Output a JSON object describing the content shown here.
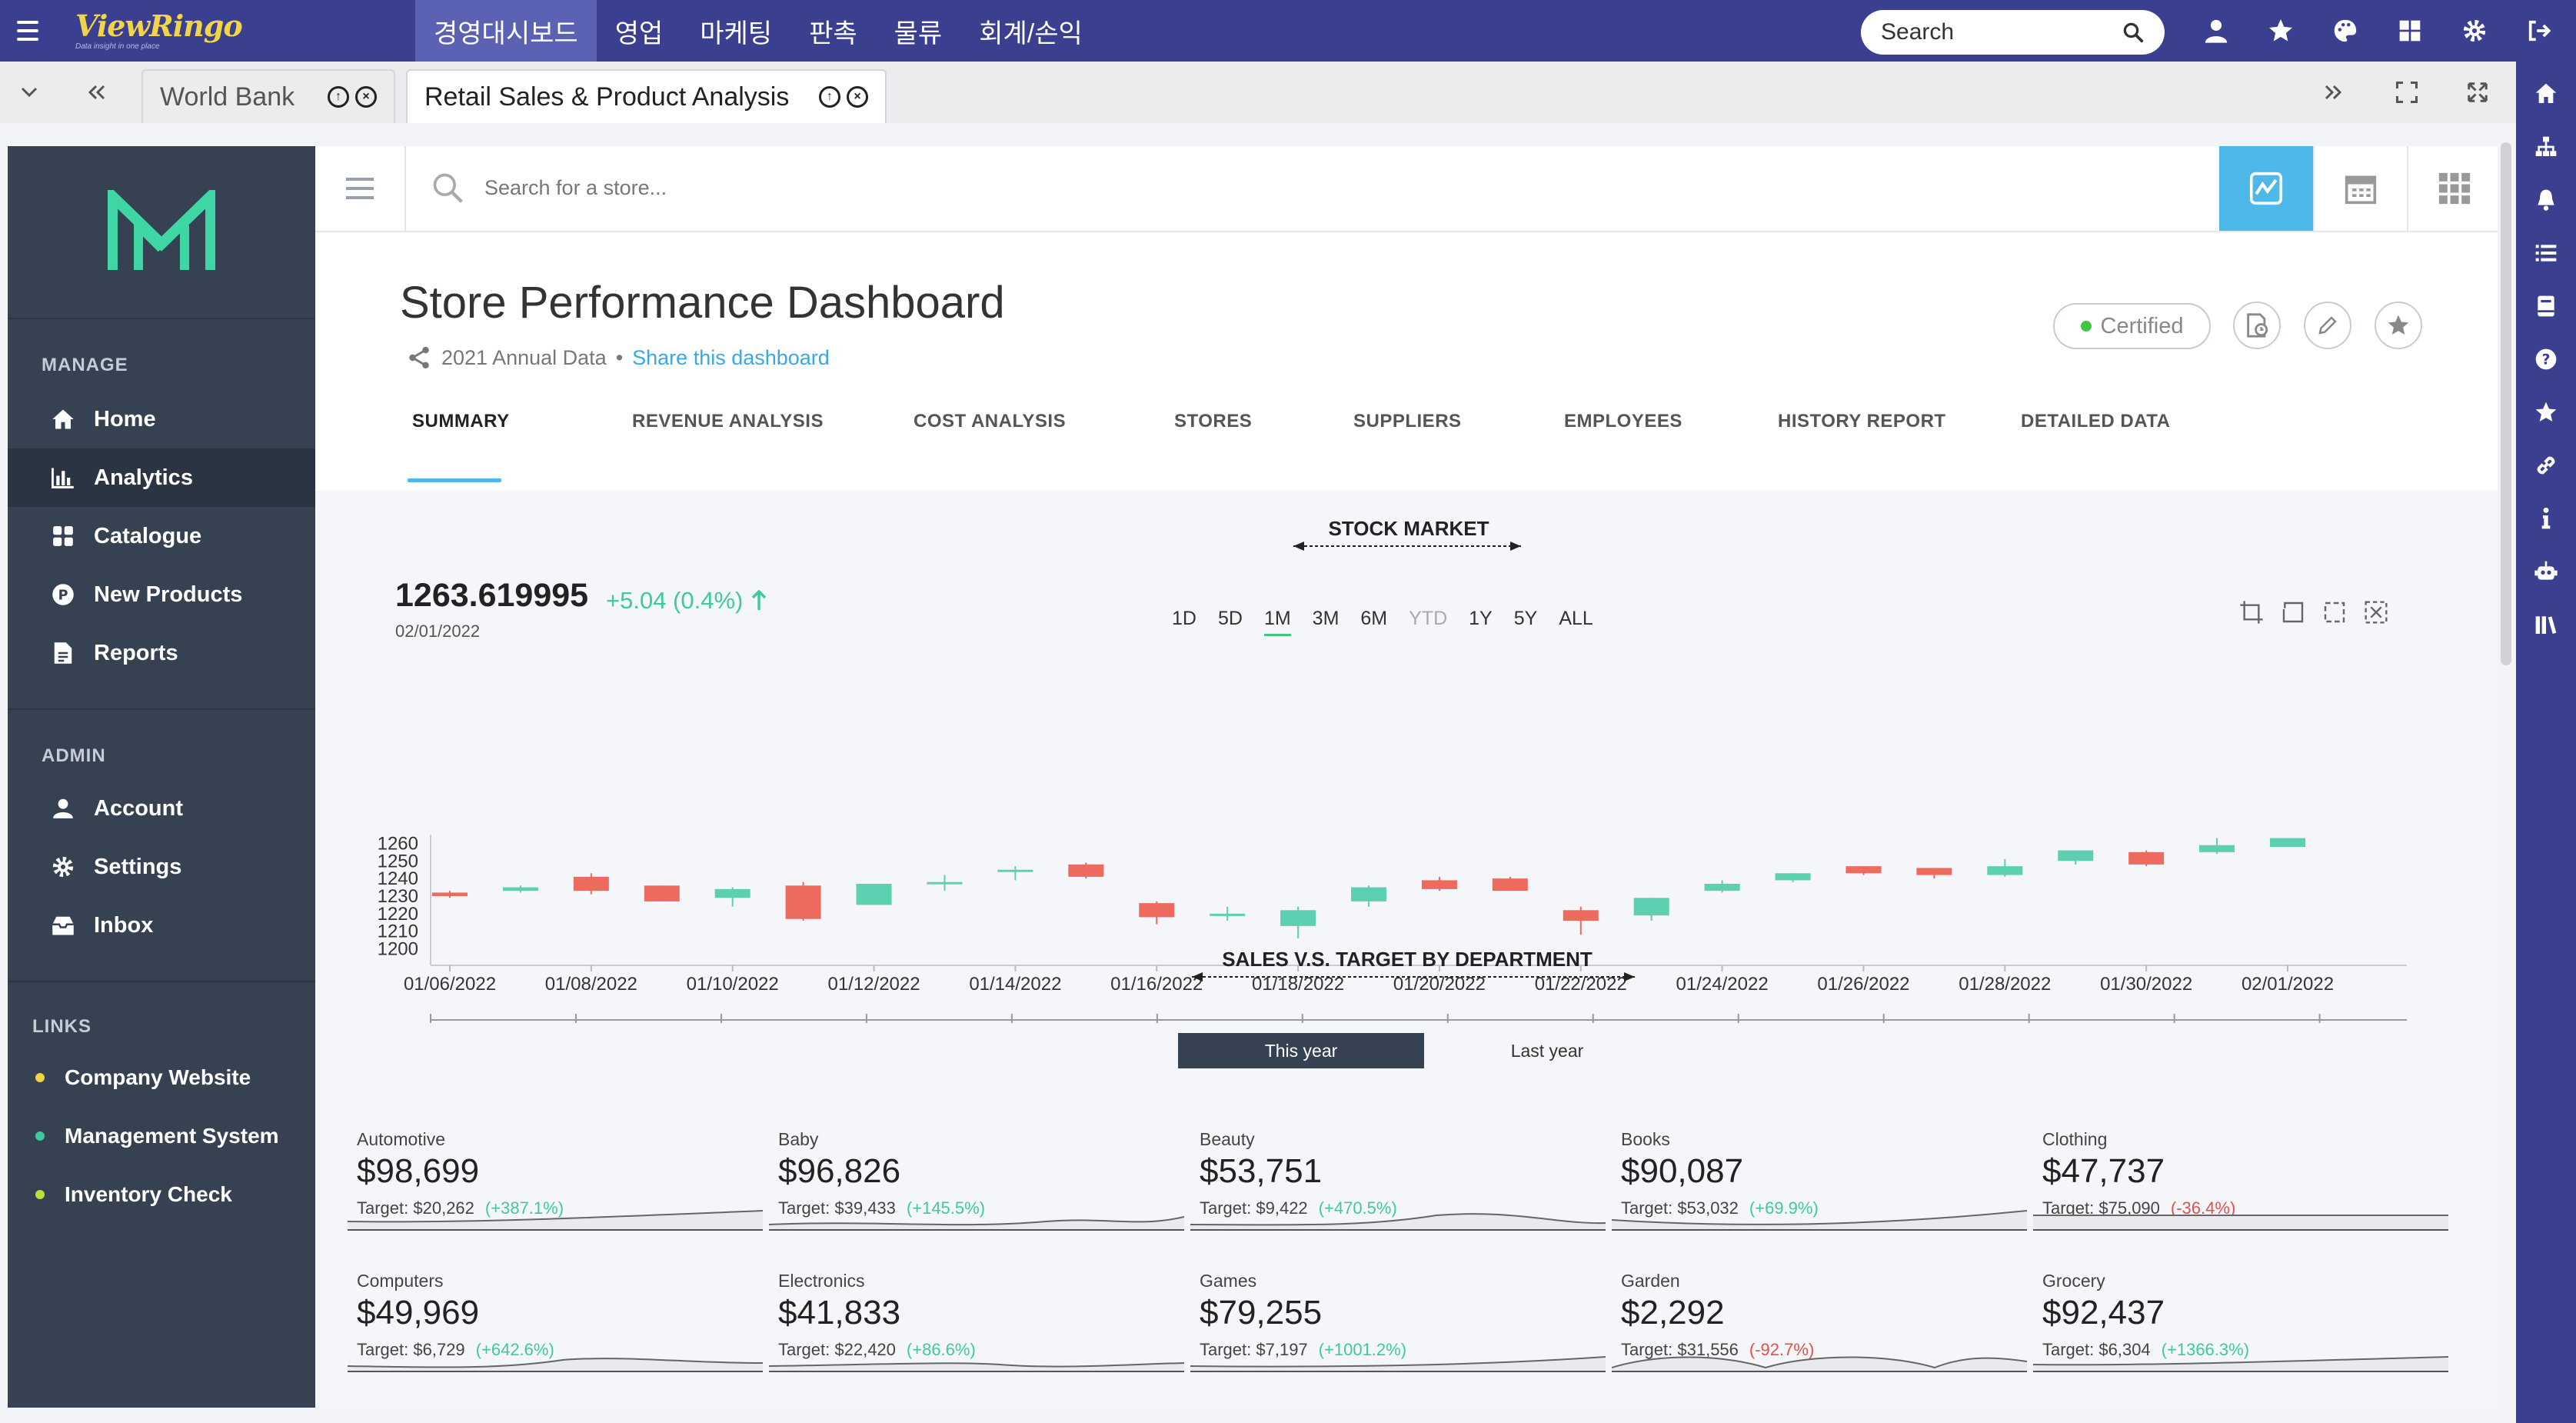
{
  "topbar": {
    "logo": "ViewRingo",
    "logo_tagline": "Data insight in one place",
    "menu": [
      {
        "label": "경영대시보드",
        "active": true
      },
      {
        "label": "영업",
        "active": false
      },
      {
        "label": "마케팅",
        "active": false
      },
      {
        "label": "판촉",
        "active": false
      },
      {
        "label": "물류",
        "active": false
      },
      {
        "label": "회계/손익",
        "active": false
      }
    ],
    "search_label": "Search",
    "icons": [
      "user-icon",
      "star-icon",
      "palette-icon",
      "grid-icon",
      "gear-icon",
      "logout-icon"
    ],
    "color": "#3a3f8f"
  },
  "tabs": {
    "items": [
      {
        "label": "World Bank",
        "active": false
      },
      {
        "label": "Retail Sales & Product Analysis",
        "active": true
      }
    ]
  },
  "rail_icons": [
    "home-icon",
    "sitemap-icon",
    "bell-icon",
    "list-icon",
    "book-icon",
    "question-icon",
    "star-icon",
    "link-icon",
    "info-icon",
    "robot-icon",
    "library-icon"
  ],
  "sidebar": {
    "manage_head": "MANAGE",
    "manage": [
      {
        "label": "Home",
        "icon": "home-icon",
        "active": false
      },
      {
        "label": "Analytics",
        "icon": "bar-chart-icon",
        "active": true
      },
      {
        "label": "Catalogue",
        "icon": "tiles-icon",
        "active": false
      },
      {
        "label": "New Products",
        "icon": "product-icon",
        "active": false
      },
      {
        "label": "Reports",
        "icon": "report-icon",
        "active": false
      }
    ],
    "admin_head": "ADMIN",
    "admin": [
      {
        "label": "Account",
        "icon": "user-icon"
      },
      {
        "label": "Settings",
        "icon": "gear-icon"
      },
      {
        "label": "Inbox",
        "icon": "inbox-icon"
      }
    ],
    "links_head": "LINKS",
    "links": [
      {
        "label": "Company Website",
        "dot": "#f2d44a"
      },
      {
        "label": "Management System",
        "dot": "#3fc9a0"
      },
      {
        "label": "Inventory Check",
        "dot": "#b6e23a"
      }
    ]
  },
  "store_search": {
    "placeholder": "Search for a store..."
  },
  "dashboard": {
    "title": "Store Performance Dashboard",
    "subtitle": "2021 Annual Data",
    "separator": "•",
    "share": "Share this dashboard",
    "certified": "Certified",
    "tabs": [
      "SUMMARY",
      "REVENUE ANALYSIS",
      "COST ANALYSIS",
      "STORES",
      "SUPPLIERS",
      "EMPLOYEES",
      "HISTORY REPORT",
      "DETAILED DATA"
    ],
    "active_tab": "SUMMARY"
  },
  "stock": {
    "title": "STOCK MARKET",
    "price": "1263.619995",
    "change": "+5.04 (0.4%)",
    "date": "02/01/2022",
    "ranges": [
      "1D",
      "5D",
      "1M",
      "3M",
      "6M",
      "YTD",
      "1Y",
      "5Y",
      "ALL"
    ],
    "selected_range": "1M",
    "disabled_range": "YTD"
  },
  "chart_data": {
    "type": "candlestick",
    "title": "STOCK MARKET",
    "ylim": [
      1195,
      1265
    ],
    "yticks": [
      1200,
      1210,
      1220,
      1230,
      1240,
      1250,
      1260
    ],
    "xticks": [
      "01/06/2022",
      "01/08/2022",
      "01/10/2022",
      "01/12/2022",
      "01/14/2022",
      "01/16/2022",
      "01/18/2022",
      "01/20/2022",
      "01/22/2022",
      "01/24/2022",
      "01/26/2022",
      "01/28/2022",
      "01/30/2022",
      "02/01/2022"
    ],
    "up_color": "#5dd0b1",
    "down_color": "#ec6a5e",
    "candles": [
      {
        "date": "01/06/2022",
        "open": 1232,
        "close": 1230,
        "high": 1233,
        "low": 1229
      },
      {
        "date": "01/07/2022",
        "open": 1233,
        "close": 1235,
        "high": 1236,
        "low": 1232
      },
      {
        "date": "01/08/2022",
        "open": 1241,
        "close": 1233,
        "high": 1243,
        "low": 1231
      },
      {
        "date": "01/09/2022",
        "open": 1236,
        "close": 1227,
        "high": 1236,
        "low": 1227
      },
      {
        "date": "01/10/2022",
        "open": 1229,
        "close": 1234,
        "high": 1235,
        "low": 1224
      },
      {
        "date": "01/11/2022",
        "open": 1236,
        "close": 1217,
        "high": 1238,
        "low": 1216
      },
      {
        "date": "01/12/2022",
        "open": 1225,
        "close": 1237,
        "high": 1237,
        "low": 1225
      },
      {
        "date": "01/13/2022",
        "open": 1238,
        "close": 1238,
        "high": 1242,
        "low": 1233
      },
      {
        "date": "01/14/2022",
        "open": 1245,
        "close": 1245,
        "high": 1247,
        "low": 1239
      },
      {
        "date": "01/15/2022",
        "open": 1248,
        "close": 1241,
        "high": 1249,
        "low": 1240
      },
      {
        "date": "01/16/2022",
        "open": 1226,
        "close": 1218,
        "high": 1227,
        "low": 1214
      },
      {
        "date": "01/17/2022",
        "open": 1220,
        "close": 1220,
        "high": 1224,
        "low": 1216
      },
      {
        "date": "01/18/2022",
        "open": 1213,
        "close": 1222,
        "high": 1224,
        "low": 1206
      },
      {
        "date": "01/19/2022",
        "open": 1227,
        "close": 1235,
        "high": 1236,
        "low": 1224
      },
      {
        "date": "01/20/2022",
        "open": 1239,
        "close": 1234,
        "high": 1241,
        "low": 1233
      },
      {
        "date": "01/21/2022",
        "open": 1240,
        "close": 1233,
        "high": 1241,
        "low": 1233
      },
      {
        "date": "01/22/2022",
        "open": 1222,
        "close": 1216,
        "high": 1224,
        "low": 1208
      },
      {
        "date": "01/23/2022",
        "open": 1219,
        "close": 1229,
        "high": 1229,
        "low": 1216
      },
      {
        "date": "01/24/2022",
        "open": 1233,
        "close": 1237,
        "high": 1239,
        "low": 1232
      },
      {
        "date": "01/25/2022",
        "open": 1239,
        "close": 1243,
        "high": 1243,
        "low": 1238
      },
      {
        "date": "01/26/2022",
        "open": 1247,
        "close": 1243,
        "high": 1247,
        "low": 1242
      },
      {
        "date": "01/27/2022",
        "open": 1246,
        "close": 1242,
        "high": 1246,
        "low": 1240
      },
      {
        "date": "01/28/2022",
        "open": 1242,
        "close": 1247,
        "high": 1251,
        "low": 1241
      },
      {
        "date": "01/29/2022",
        "open": 1250,
        "close": 1256,
        "high": 1256,
        "low": 1248
      },
      {
        "date": "01/30/2022",
        "open": 1255,
        "close": 1248,
        "high": 1256,
        "low": 1247
      },
      {
        "date": "01/31/2022",
        "open": 1255,
        "close": 1259,
        "high": 1263,
        "low": 1254
      },
      {
        "date": "02/01/2022",
        "open": 1258,
        "close": 1263,
        "high": 1263,
        "low": 1258
      }
    ]
  },
  "sales": {
    "title": "SALES V.S. TARGET BY DEPARTMENT",
    "toggle": [
      "This year",
      "Last year"
    ],
    "selected": "This year",
    "departments": [
      {
        "name": "Automotive",
        "value": "$98,699",
        "target": "Target: $20,262",
        "pct": "(+387.1%)",
        "neg": false
      },
      {
        "name": "Baby",
        "value": "$96,826",
        "target": "Target: $39,433",
        "pct": "(+145.5%)",
        "neg": false
      },
      {
        "name": "Beauty",
        "value": "$53,751",
        "target": "Target: $9,422",
        "pct": "(+470.5%)",
        "neg": false
      },
      {
        "name": "Books",
        "value": "$90,087",
        "target": "Target: $53,032",
        "pct": "(+69.9%)",
        "neg": false
      },
      {
        "name": "Clothing",
        "value": "$47,737",
        "target": "Target: $75,090",
        "pct": "(-36.4%)",
        "neg": true
      },
      {
        "name": "Computers",
        "value": "$49,969",
        "target": "Target: $6,729",
        "pct": "(+642.6%)",
        "neg": false
      },
      {
        "name": "Electronics",
        "value": "$41,833",
        "target": "Target: $22,420",
        "pct": "(+86.6%)",
        "neg": false
      },
      {
        "name": "Games",
        "value": "$79,255",
        "target": "Target: $7,197",
        "pct": "(+1001.2%)",
        "neg": false
      },
      {
        "name": "Garden",
        "value": "$2,292",
        "target": "Target: $31,556",
        "pct": "(-92.7%)",
        "neg": true
      },
      {
        "name": "Grocery",
        "value": "$92,437",
        "target": "Target: $6,304",
        "pct": "(+1366.3%)",
        "neg": false
      }
    ]
  }
}
